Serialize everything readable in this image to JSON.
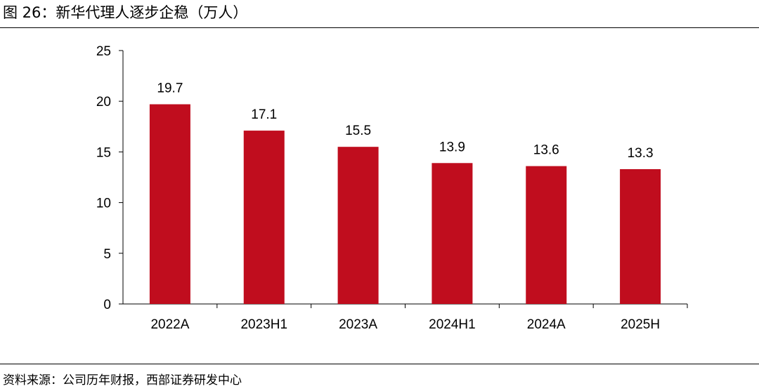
{
  "figure": {
    "title": "图 26：新华代理人逐步企稳（万人）",
    "source": "资料来源：公司历年财报，西部证券研发中心"
  },
  "chart_data": {
    "type": "bar",
    "title": "新华代理人逐步企稳（万人）",
    "categories": [
      "2022A",
      "2023H1",
      "2023A",
      "2024H1",
      "2024A",
      "2025H"
    ],
    "values": [
      19.7,
      17.1,
      15.5,
      13.9,
      13.6,
      13.3
    ],
    "data_labels": [
      "19.7",
      "17.1",
      "15.5",
      "13.9",
      "13.6",
      "13.3"
    ],
    "ylim": [
      0,
      25
    ],
    "yticks": [
      0,
      5,
      10,
      15,
      20,
      25
    ],
    "grid": false,
    "legend": "none",
    "xlabel": "",
    "ylabel": "",
    "bar_color": "#C00D1E"
  }
}
